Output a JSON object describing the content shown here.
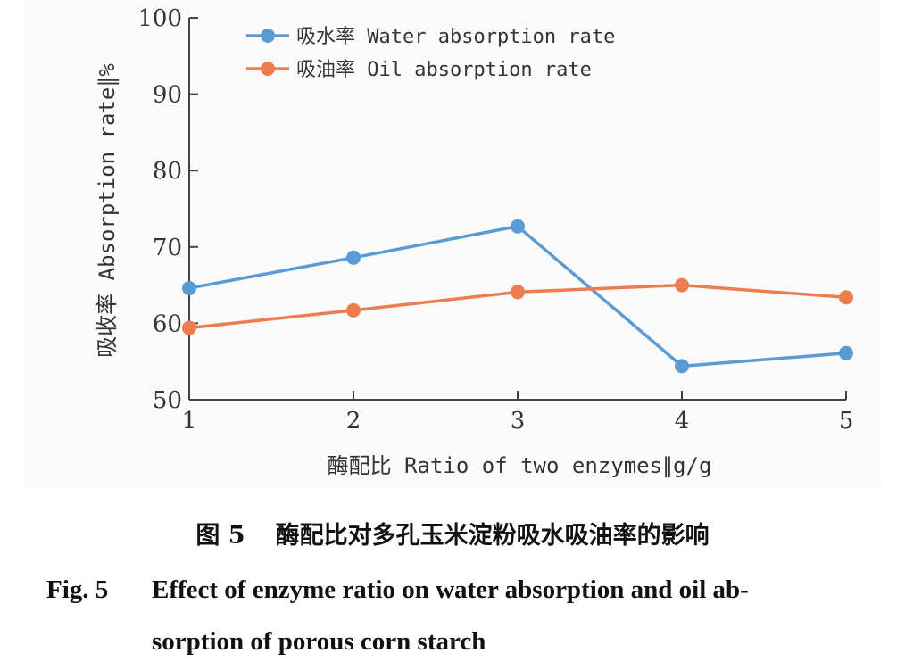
{
  "chart_data": {
    "type": "line",
    "categories": [
      "1",
      "2",
      "3",
      "4",
      "5"
    ],
    "x": [
      1,
      2,
      3,
      4,
      5
    ],
    "xlim": [
      1,
      5
    ],
    "ylim": [
      50,
      100
    ],
    "yticks": [
      "50",
      "60",
      "70",
      "80",
      "90",
      "100"
    ],
    "xlabel": "酶配比 Ratio of two enzymes∥g/g",
    "ylabel": "吸收率 Absorption rate∥%",
    "grid": false,
    "legend_position": "top-left",
    "series": [
      {
        "name": "吸水率 Water absorption rate",
        "color": "#5b9bd5",
        "values": [
          64.6,
          68.6,
          72.7,
          54.4,
          56.1
        ]
      },
      {
        "name": "吸油率 Oil absorption rate",
        "color": "#ed7d4e",
        "values": [
          59.4,
          61.7,
          64.1,
          65.0,
          63.4
        ]
      }
    ]
  },
  "caption": {
    "cn_fig_no": "图 5",
    "cn_text": "酶配比对多孔玉米淀粉吸水吸油率的影响",
    "en_fig_no": "Fig. 5",
    "en_line1": "Effect of enzyme ratio on water absorption and oil ab-",
    "en_line2": "sorption of porous corn starch"
  }
}
